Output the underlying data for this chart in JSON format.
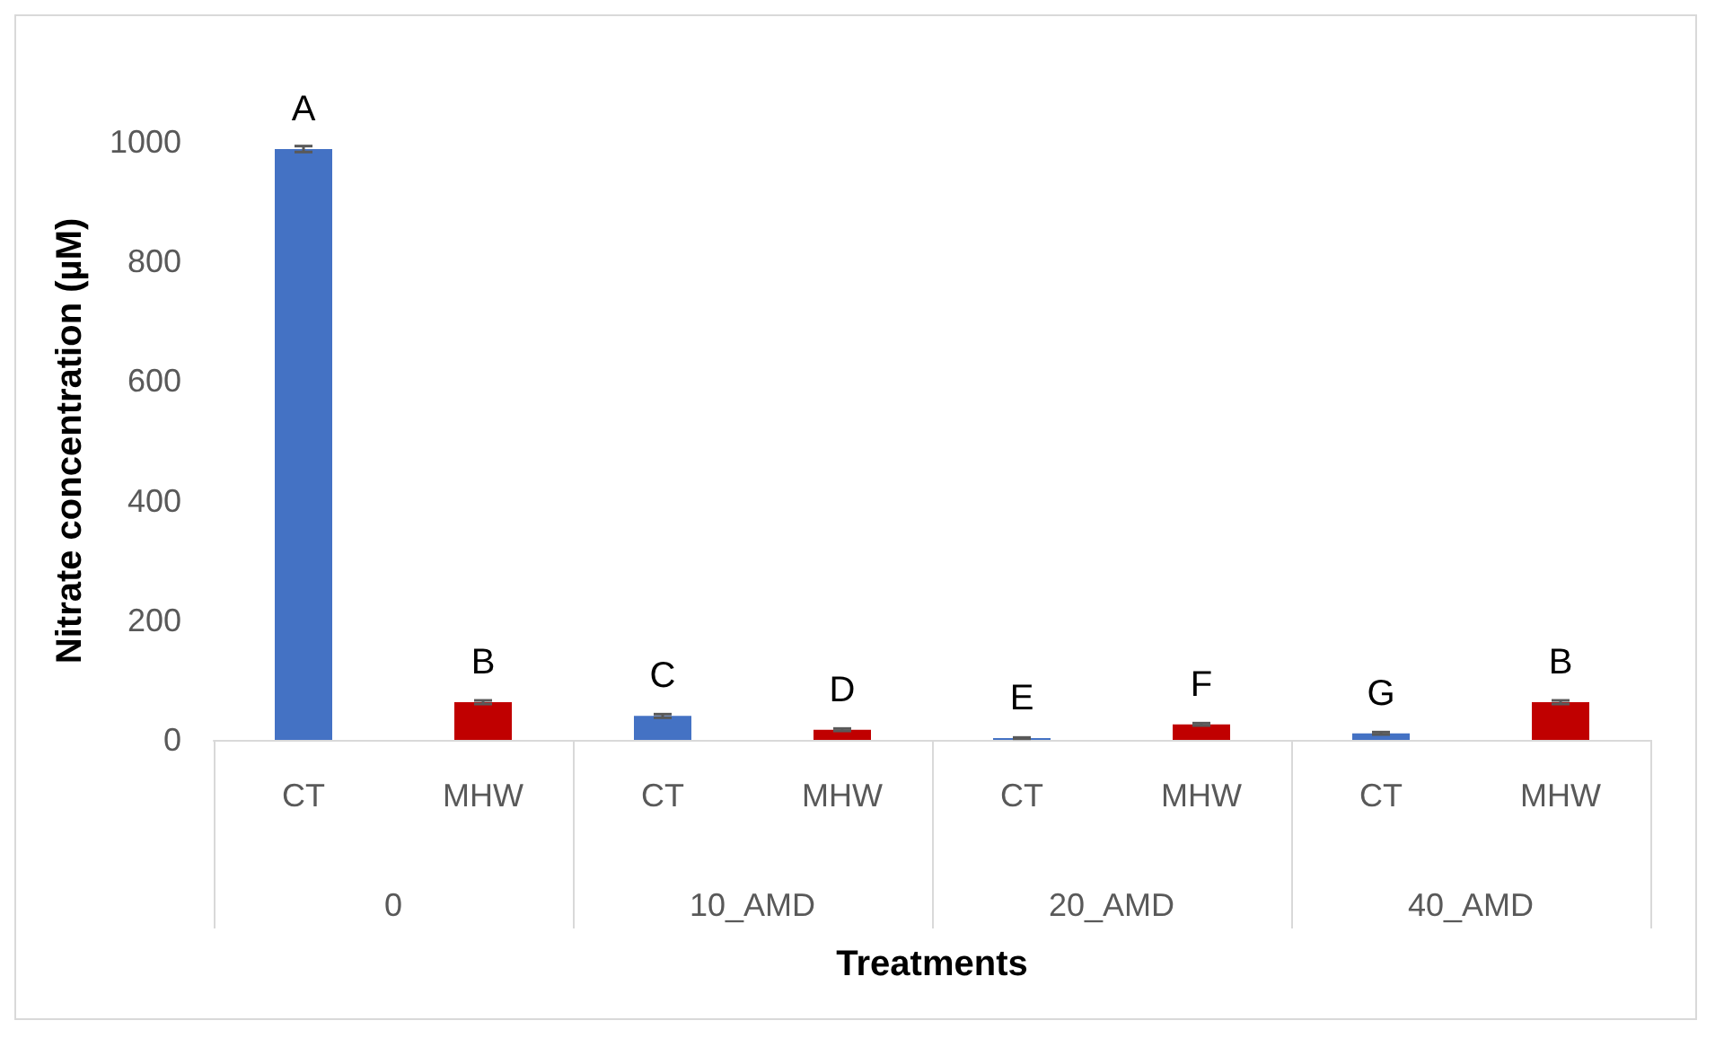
{
  "chart_data": {
    "type": "bar",
    "xlabel": "Treatments",
    "ylabel": "Nitrate concentration (µM)",
    "categories": [
      "CT",
      "MHW",
      "CT",
      "MHW",
      "CT",
      "MHW",
      "CT",
      "MHW"
    ],
    "values": [
      988,
      63,
      40,
      17,
      3,
      26,
      11,
      63
    ],
    "colors": [
      "#4472c4",
      "#c00000",
      "#4472c4",
      "#c00000",
      "#4472c4",
      "#c00000",
      "#4472c4",
      "#c00000"
    ],
    "errors": [
      5,
      3,
      3,
      2,
      1,
      2,
      2,
      3
    ],
    "value_labels": [
      "A",
      "B",
      "C",
      "D",
      "E",
      "F",
      "G",
      "B"
    ],
    "annotations": [
      "0",
      "10_AMD",
      "20_AMD",
      "40_AMD"
    ],
    "ylim": [
      0,
      1000
    ],
    "yticks": [
      0,
      200,
      400,
      600,
      800,
      1000
    ],
    "grid": false
  }
}
